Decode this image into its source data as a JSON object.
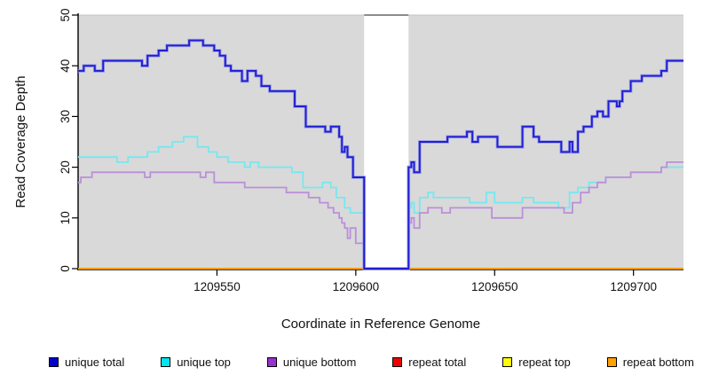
{
  "figure": {
    "x_axis_title": "Coordinate in Reference Genome",
    "y_axis_title": "Read Coverage Depth"
  },
  "chart_data": {
    "type": "line",
    "subtype": "step",
    "title": "",
    "xlabel": "Coordinate in Reference Genome",
    "ylabel": "Read Coverage Depth",
    "xlim": [
      1209500,
      1209718
    ],
    "ylim": [
      0,
      50
    ],
    "x_ticks": [
      1209550,
      1209600,
      1209650,
      1209700
    ],
    "y_ticks": [
      0,
      10,
      20,
      30,
      40,
      50
    ],
    "grid": false,
    "plot_background": "#d9d9d9",
    "masked_region": {
      "x_start": 1209603,
      "x_end": 1209619,
      "color": "#ffffff"
    },
    "legend_position": "bottom",
    "series": [
      {
        "name": "unique total",
        "swatch_color": "#0000cd",
        "line_color": "#1f1fd1",
        "halo_color": "#9a9ae8",
        "points": [
          [
            1209500,
            39
          ],
          [
            1209502,
            40
          ],
          [
            1209506,
            39
          ],
          [
            1209509,
            41
          ],
          [
            1209523,
            40
          ],
          [
            1209525,
            42
          ],
          [
            1209529,
            43
          ],
          [
            1209532,
            44
          ],
          [
            1209540,
            45
          ],
          [
            1209545,
            44
          ],
          [
            1209549,
            43
          ],
          [
            1209551,
            42
          ],
          [
            1209553,
            40
          ],
          [
            1209555,
            39
          ],
          [
            1209559,
            37
          ],
          [
            1209561,
            39
          ],
          [
            1209564,
            38
          ],
          [
            1209566,
            36
          ],
          [
            1209569,
            35
          ],
          [
            1209578,
            32
          ],
          [
            1209582,
            28
          ],
          [
            1209589,
            27
          ],
          [
            1209591,
            28
          ],
          [
            1209594,
            26
          ],
          [
            1209595,
            23
          ],
          [
            1209596,
            24
          ],
          [
            1209597,
            22
          ],
          [
            1209599,
            18
          ],
          [
            1209603,
            0
          ],
          [
            1209619,
            20
          ],
          [
            1209620,
            21
          ],
          [
            1209621,
            19
          ],
          [
            1209623,
            25
          ],
          [
            1209633,
            26
          ],
          [
            1209640,
            27
          ],
          [
            1209642,
            25
          ],
          [
            1209644,
            26
          ],
          [
            1209651,
            24
          ],
          [
            1209660,
            28
          ],
          [
            1209664,
            26
          ],
          [
            1209666,
            25
          ],
          [
            1209674,
            23
          ],
          [
            1209677,
            25
          ],
          [
            1209678,
            23
          ],
          [
            1209680,
            27
          ],
          [
            1209682,
            28
          ],
          [
            1209685,
            30
          ],
          [
            1209687,
            31
          ],
          [
            1209689,
            30
          ],
          [
            1209691,
            33
          ],
          [
            1209694,
            32
          ],
          [
            1209695,
            33
          ],
          [
            1209696,
            35
          ],
          [
            1209699,
            37
          ],
          [
            1209703,
            38
          ],
          [
            1209710,
            39
          ],
          [
            1209712,
            41
          ]
        ]
      },
      {
        "name": "unique top",
        "swatch_color": "#00e5ee",
        "line_color": "#76e8f0",
        "points": [
          [
            1209500,
            22
          ],
          [
            1209514,
            21
          ],
          [
            1209518,
            22
          ],
          [
            1209525,
            23
          ],
          [
            1209529,
            24
          ],
          [
            1209534,
            25
          ],
          [
            1209538,
            26
          ],
          [
            1209543,
            24
          ],
          [
            1209547,
            23
          ],
          [
            1209550,
            22
          ],
          [
            1209554,
            21
          ],
          [
            1209560,
            20
          ],
          [
            1209562,
            21
          ],
          [
            1209565,
            20
          ],
          [
            1209577,
            19
          ],
          [
            1209581,
            16
          ],
          [
            1209588,
            17
          ],
          [
            1209591,
            16
          ],
          [
            1209593,
            14
          ],
          [
            1209596,
            12
          ],
          [
            1209598,
            11
          ],
          [
            1209603,
            0
          ],
          [
            1209619,
            12
          ],
          [
            1209620,
            13
          ],
          [
            1209621,
            11
          ],
          [
            1209623,
            14
          ],
          [
            1209626,
            15
          ],
          [
            1209628,
            14
          ],
          [
            1209641,
            13
          ],
          [
            1209647,
            15
          ],
          [
            1209650,
            13
          ],
          [
            1209660,
            14
          ],
          [
            1209664,
            13
          ],
          [
            1209673,
            12
          ],
          [
            1209677,
            15
          ],
          [
            1209680,
            16
          ],
          [
            1209684,
            17
          ],
          [
            1209690,
            18
          ],
          [
            1209699,
            19
          ],
          [
            1209710,
            20
          ]
        ]
      },
      {
        "name": "unique bottom",
        "swatch_color": "#9932cc",
        "line_color": "#bb8fd9",
        "points": [
          [
            1209500,
            17
          ],
          [
            1209501,
            18
          ],
          [
            1209505,
            19
          ],
          [
            1209524,
            18
          ],
          [
            1209526,
            19
          ],
          [
            1209544,
            18
          ],
          [
            1209546,
            19
          ],
          [
            1209549,
            17
          ],
          [
            1209560,
            16
          ],
          [
            1209575,
            15
          ],
          [
            1209583,
            14
          ],
          [
            1209587,
            13
          ],
          [
            1209590,
            12
          ],
          [
            1209592,
            11
          ],
          [
            1209594,
            10
          ],
          [
            1209595,
            9
          ],
          [
            1209596,
            8
          ],
          [
            1209597,
            6
          ],
          [
            1209598,
            8
          ],
          [
            1209600,
            5
          ],
          [
            1209603,
            0
          ],
          [
            1209619,
            9
          ],
          [
            1209620,
            10
          ],
          [
            1209621,
            8
          ],
          [
            1209623,
            11
          ],
          [
            1209626,
            12
          ],
          [
            1209631,
            11
          ],
          [
            1209634,
            12
          ],
          [
            1209649,
            10
          ],
          [
            1209660,
            12
          ],
          [
            1209675,
            11
          ],
          [
            1209678,
            13
          ],
          [
            1209681,
            15
          ],
          [
            1209684,
            16
          ],
          [
            1209687,
            17
          ],
          [
            1209690,
            18
          ],
          [
            1209699,
            19
          ],
          [
            1209710,
            20
          ],
          [
            1209712,
            21
          ]
        ]
      },
      {
        "name": "repeat total",
        "swatch_color": "#ee0000",
        "line_color": "#ee0000",
        "points": [
          [
            1209500,
            0
          ]
        ]
      },
      {
        "name": "repeat top",
        "swatch_color": "#ffff00",
        "line_color": "#ffff00",
        "points": [
          [
            1209500,
            0
          ]
        ]
      },
      {
        "name": "repeat bottom",
        "swatch_color": "#ffa200",
        "line_color": "#ff9414",
        "points": [
          [
            1209500,
            0
          ]
        ]
      }
    ]
  }
}
